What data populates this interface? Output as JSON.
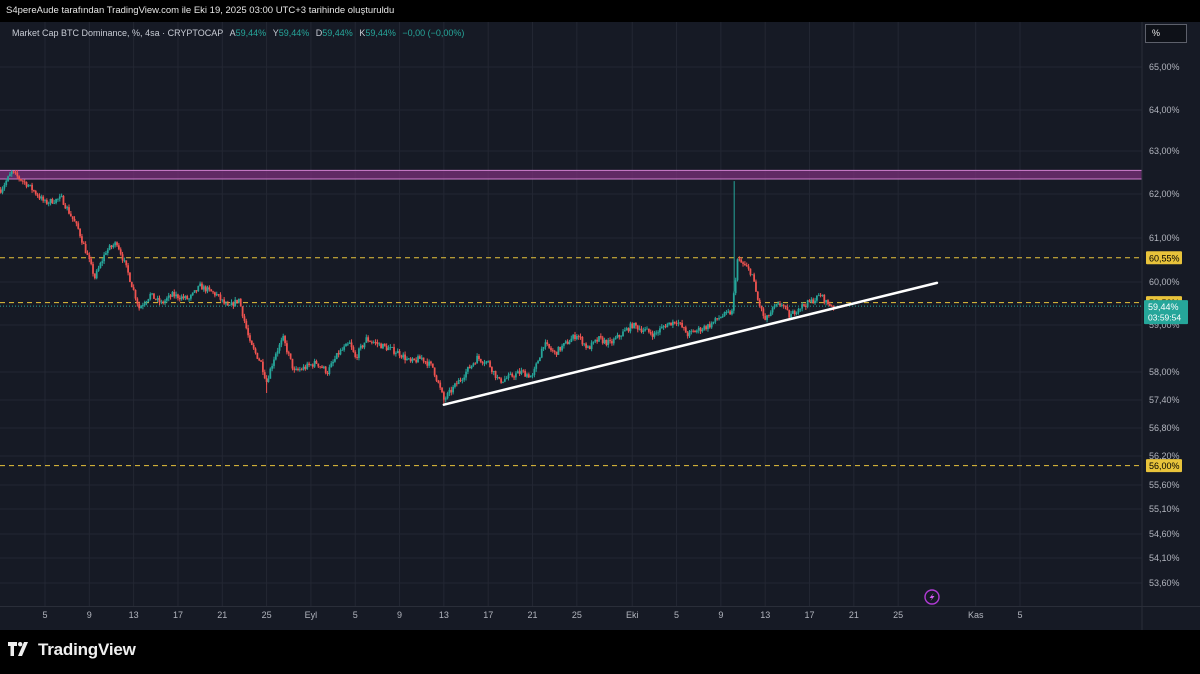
{
  "header": {
    "credit": "S4pereAude tarafından TradingView.com ile Eki 19, 2025 03:00 UTC+3 tarihinde oluşturuldu"
  },
  "legend": {
    "symbol": "Market Cap BTC Dominance, %",
    "interval": "4sa",
    "exchange": "CRYPTOCAP",
    "open_label": "A",
    "open": "59,44%",
    "high_label": "Y",
    "high": "59,44%",
    "low_label": "D",
    "low": "59,44%",
    "close_label": "K",
    "close": "59,44%",
    "change": "−0,00 (−0,00%)"
  },
  "scale_button": "%",
  "brand": {
    "name": "TradingView",
    "icon": "tradingview-logo-icon"
  },
  "alert_icon": "lightning-alert-icon",
  "colors": {
    "background": "#161a25",
    "up": "#26a69a",
    "down": "#ef5350",
    "level_line": "#e8c33b",
    "zone": "#7a2f7a",
    "trendline": "#ffffff",
    "current_price": "#26a69a"
  },
  "chart_data": {
    "type": "candlestick",
    "symbol": "Market Cap BTC Dominance, %",
    "interval": "4sa",
    "y_axis": {
      "ticks": [
        {
          "v": 65.0,
          "label": "65,00%"
        },
        {
          "v": 64.0,
          "label": "64,00%"
        },
        {
          "v": 63.0,
          "label": "63,00%"
        },
        {
          "v": 62.0,
          "label": "62,00%"
        },
        {
          "v": 61.0,
          "label": "61,00%"
        },
        {
          "v": 60.0,
          "label": "60,00%"
        },
        {
          "v": 59.0,
          "label": "59,00%"
        },
        {
          "v": 58.0,
          "label": "58,00%"
        },
        {
          "v": 57.4,
          "label": "57,40%"
        },
        {
          "v": 56.8,
          "label": "56,80%"
        },
        {
          "v": 56.2,
          "label": "56,20%"
        },
        {
          "v": 55.6,
          "label": "55,60%"
        },
        {
          "v": 55.1,
          "label": "55,10%"
        },
        {
          "v": 54.6,
          "label": "54,60%"
        },
        {
          "v": 54.1,
          "label": "54,10%"
        },
        {
          "v": 53.6,
          "label": "53,60%"
        }
      ]
    },
    "x_axis": {
      "ticks": [
        {
          "d": 5,
          "label": "5"
        },
        {
          "d": 9,
          "label": "9"
        },
        {
          "d": 13,
          "label": "13"
        },
        {
          "d": 17,
          "label": "17"
        },
        {
          "d": 21,
          "label": "21"
        },
        {
          "d": 25,
          "label": "25"
        },
        {
          "d": 29,
          "label": "Eyl"
        },
        {
          "d": 33,
          "label": "5"
        },
        {
          "d": 37,
          "label": "9"
        },
        {
          "d": 41,
          "label": "13"
        },
        {
          "d": 45,
          "label": "17"
        },
        {
          "d": 49,
          "label": "21"
        },
        {
          "d": 53,
          "label": "25"
        },
        {
          "d": 58,
          "label": "Eki"
        },
        {
          "d": 62,
          "label": "5"
        },
        {
          "d": 66,
          "label": "9"
        },
        {
          "d": 70,
          "label": "13"
        },
        {
          "d": 74,
          "label": "17"
        },
        {
          "d": 78,
          "label": "21"
        },
        {
          "d": 82,
          "label": "25"
        },
        {
          "d": 89,
          "label": "Kas"
        },
        {
          "d": 93,
          "label": "5"
        }
      ]
    },
    "levels": [
      {
        "value": 60.55,
        "label": "60,55%",
        "style": "dashed"
      },
      {
        "value": 59.52,
        "label": "59,52%",
        "style": "dashed"
      },
      {
        "value": 56.0,
        "label": "56,00%",
        "style": "dashed"
      }
    ],
    "zone": {
      "from": 62.35,
      "to": 62.55
    },
    "current_price": {
      "value": 59.44,
      "label": "59,44%",
      "countdown": "03:59:54"
    },
    "trendline": {
      "from": {
        "d": 41,
        "v": 57.3
      },
      "to": {
        "d": 85.5,
        "v": 59.98
      }
    },
    "price_path": [
      [
        1.0,
        62.1
      ],
      [
        2.0,
        62.5
      ],
      [
        3.5,
        62.2
      ],
      [
        5.0,
        61.8
      ],
      [
        6.5,
        61.9
      ],
      [
        8.0,
        61.2
      ],
      [
        9.5,
        60.1
      ],
      [
        10.5,
        60.7
      ],
      [
        11.5,
        60.9
      ],
      [
        12.5,
        60.2
      ],
      [
        13.5,
        59.4
      ],
      [
        14.5,
        59.7
      ],
      [
        15.5,
        59.5
      ],
      [
        16.5,
        59.7
      ],
      [
        18.0,
        59.6
      ],
      [
        19.0,
        59.9
      ],
      [
        20.5,
        59.7
      ],
      [
        21.5,
        59.4
      ],
      [
        22.5,
        59.6
      ],
      [
        23.5,
        58.6
      ],
      [
        24.5,
        58.2
      ],
      [
        25.0,
        57.8
      ],
      [
        25.8,
        58.4
      ],
      [
        26.5,
        58.7
      ],
      [
        27.5,
        58.0
      ],
      [
        28.5,
        58.1
      ],
      [
        29.5,
        58.2
      ],
      [
        30.5,
        58.0
      ],
      [
        31.5,
        58.4
      ],
      [
        32.5,
        58.6
      ],
      [
        33.0,
        58.3
      ],
      [
        34.0,
        58.7
      ],
      [
        35.0,
        58.6
      ],
      [
        36.0,
        58.5
      ],
      [
        37.0,
        58.4
      ],
      [
        38.0,
        58.2
      ],
      [
        39.0,
        58.3
      ],
      [
        40.0,
        58.1
      ],
      [
        41.0,
        57.4
      ],
      [
        42.0,
        57.7
      ],
      [
        43.0,
        58.0
      ],
      [
        44.0,
        58.3
      ],
      [
        45.0,
        58.2
      ],
      [
        46.0,
        57.8
      ],
      [
        47.0,
        57.9
      ],
      [
        48.0,
        58.0
      ],
      [
        49.0,
        57.9
      ],
      [
        50.0,
        58.6
      ],
      [
        51.0,
        58.4
      ],
      [
        52.0,
        58.6
      ],
      [
        53.0,
        58.8
      ],
      [
        54.0,
        58.5
      ],
      [
        55.0,
        58.7
      ],
      [
        56.0,
        58.6
      ],
      [
        57.0,
        58.8
      ],
      [
        58.0,
        59.0
      ],
      [
        59.0,
        58.9
      ],
      [
        60.0,
        58.8
      ],
      [
        61.0,
        59.0
      ],
      [
        62.0,
        59.1
      ],
      [
        63.0,
        58.8
      ],
      [
        64.0,
        58.9
      ],
      [
        65.0,
        59.0
      ],
      [
        66.0,
        59.2
      ],
      [
        67.0,
        59.3
      ],
      [
        67.5,
        60.5
      ],
      [
        68.0,
        60.4
      ],
      [
        68.8,
        60.2
      ],
      [
        69.3,
        59.6
      ],
      [
        70.0,
        59.1
      ],
      [
        70.8,
        59.4
      ],
      [
        71.5,
        59.5
      ],
      [
        72.2,
        59.2
      ],
      [
        73.0,
        59.4
      ],
      [
        73.8,
        59.5
      ],
      [
        74.5,
        59.6
      ],
      [
        75.0,
        59.7
      ],
      [
        75.6,
        59.5
      ],
      [
        76.2,
        59.44
      ]
    ],
    "spikes": [
      {
        "d": 67.2,
        "high": 62.3
      },
      {
        "d": 25.0,
        "low": 57.55
      },
      {
        "d": 41.0,
        "low": 57.3
      }
    ]
  }
}
